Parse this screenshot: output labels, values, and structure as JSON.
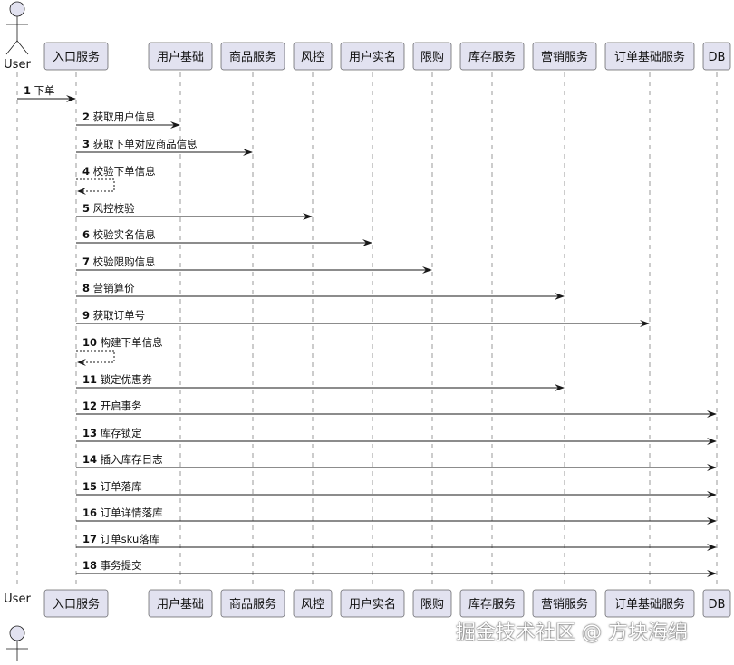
{
  "participants": [
    {
      "name": "User",
      "type": "actor"
    },
    {
      "name": "入口服务",
      "type": "participant"
    },
    {
      "name": "用户基础",
      "type": "participant"
    },
    {
      "name": "商品服务",
      "type": "participant"
    },
    {
      "name": "风控",
      "type": "participant"
    },
    {
      "name": "用户实名",
      "type": "participant"
    },
    {
      "name": "限购",
      "type": "participant"
    },
    {
      "name": "库存服务",
      "type": "participant"
    },
    {
      "name": "营销服务",
      "type": "participant"
    },
    {
      "name": "订单基础服务",
      "type": "participant"
    },
    {
      "name": "DB",
      "type": "participant"
    }
  ],
  "messages": [
    {
      "num": "1",
      "text": "下单",
      "from": 0,
      "to": 1
    },
    {
      "num": "2",
      "text": "获取用户信息",
      "from": 1,
      "to": 2
    },
    {
      "num": "3",
      "text": "获取下单对应商品信息",
      "from": 1,
      "to": 3
    },
    {
      "num": "4",
      "text": "校验下单信息",
      "from": 1,
      "to": 1,
      "dashed": true
    },
    {
      "num": "5",
      "text": "风控校验",
      "from": 1,
      "to": 4
    },
    {
      "num": "6",
      "text": "校验实名信息",
      "from": 1,
      "to": 5
    },
    {
      "num": "7",
      "text": "校验限购信息",
      "from": 1,
      "to": 6
    },
    {
      "num": "8",
      "text": "营销算价",
      "from": 1,
      "to": 8
    },
    {
      "num": "9",
      "text": "获取订单号",
      "from": 1,
      "to": 9
    },
    {
      "num": "10",
      "text": "构建下单信息",
      "from": 1,
      "to": 1,
      "dashed": true
    },
    {
      "num": "11",
      "text": "锁定优惠券",
      "from": 1,
      "to": 8
    },
    {
      "num": "12",
      "text": "开启事务",
      "from": 1,
      "to": 10
    },
    {
      "num": "13",
      "text": "库存锁定",
      "from": 1,
      "to": 10
    },
    {
      "num": "14",
      "text": "插入库存日志",
      "from": 1,
      "to": 10
    },
    {
      "num": "15",
      "text": "订单落库",
      "from": 1,
      "to": 10
    },
    {
      "num": "16",
      "text": "订单详情落库",
      "from": 1,
      "to": 10
    },
    {
      "num": "17",
      "text": "订单sku落库",
      "from": 1,
      "to": 10
    },
    {
      "num": "18",
      "text": "事务提交",
      "from": 1,
      "to": 10
    }
  ],
  "colors": {
    "box_fill": "#e2e2f0",
    "box_stroke": "#181818",
    "line": "#181818"
  },
  "watermark": "掘金技术社区 @ 方块海绵"
}
